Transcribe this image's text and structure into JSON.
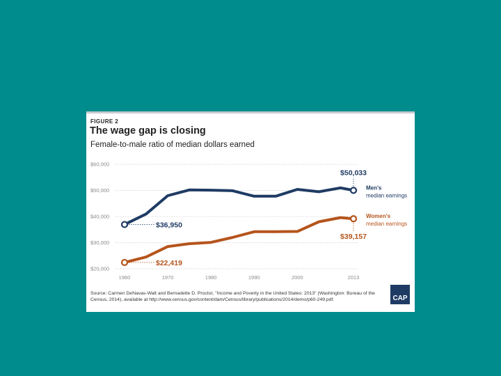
{
  "figure_label": "FIGURE 2",
  "logo_text": "CAP",
  "source_text": "Source: Carmen DeNavas-Walt and Bernadette D. Proctor, \"Income and Poverty in the United States: 2013\" (Washington: Bureau of the Census, 2014), available at http://www.census.gov/content/dam/Census/library/publications/2014/demo/p60-249.pdf.",
  "colors": {
    "background": "#008c8c",
    "men": "#1f3b64",
    "women": "#b5541c"
  },
  "chart_data": {
    "type": "line",
    "title": "The wage gap is closing",
    "subtitle": "Female-to-male ratio of median dollars earned",
    "x_ticks": [
      "1960",
      "1970",
      "1980",
      "1990",
      "2000",
      "2013"
    ],
    "x_tick_values": [
      1960,
      1970,
      1980,
      1990,
      2000,
      2013
    ],
    "y_ticks": [
      "$20,000",
      "$30,000",
      "$40,000",
      "$50,000",
      "$60,000"
    ],
    "y_tick_values": [
      20000,
      30000,
      40000,
      50000,
      60000
    ],
    "xlim": [
      1960,
      2013
    ],
    "ylim": [
      20000,
      60000
    ],
    "grid": true,
    "series": [
      {
        "name": "Men's median earnings",
        "legend": [
          "Men's",
          "median earnings"
        ],
        "color": "#1f3b64",
        "x": [
          1960,
          1965,
          1970,
          1975,
          1980,
          1985,
          1990,
          1995,
          2000,
          2005,
          2010,
          2013
        ],
        "y": [
          36950,
          41000,
          48000,
          50200,
          50100,
          49900,
          47800,
          47800,
          50400,
          49500,
          51000,
          50033
        ],
        "start_label": "$36,950",
        "end_label": "$50,033"
      },
      {
        "name": "Women's median earnings",
        "legend": [
          "Women's",
          "median earnings"
        ],
        "color": "#b5541c",
        "x": [
          1960,
          1965,
          1970,
          1975,
          1980,
          1985,
          1990,
          1995,
          2000,
          2005,
          2010,
          2013
        ],
        "y": [
          22419,
          24500,
          28500,
          29600,
          30100,
          32000,
          34200,
          34200,
          34300,
          38000,
          39600,
          39157
        ],
        "start_label": "$22,419",
        "end_label": "$39,157"
      }
    ]
  }
}
